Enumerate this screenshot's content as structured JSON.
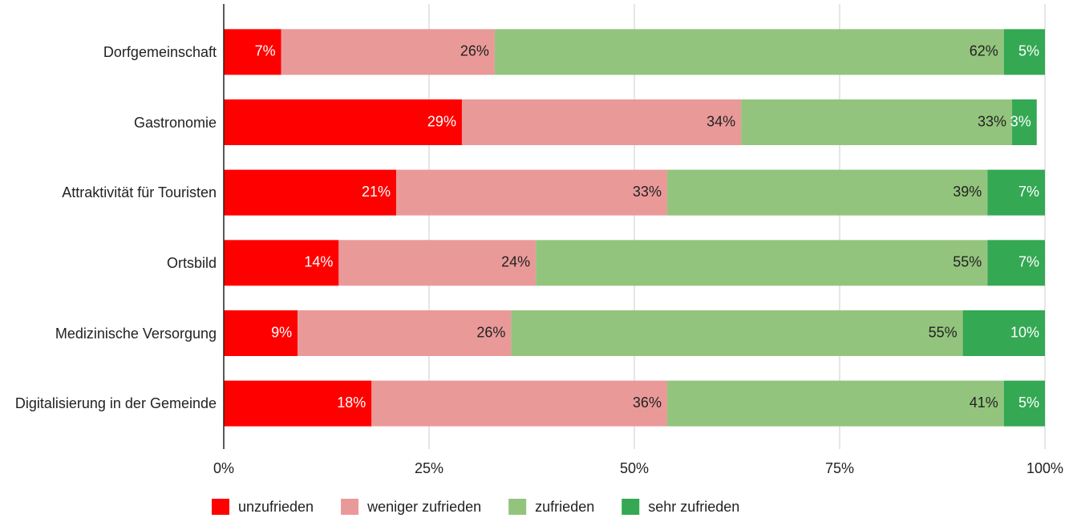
{
  "chart_data": {
    "type": "stacked_bar_horizontal",
    "categories": [
      "Dorfgemeinschaft",
      "Gastronomie",
      "Attraktivität für Touristen",
      "Ortsbild",
      "Medizinische Versorgung",
      "Digitalisierung in der Gemeinde"
    ],
    "series": [
      {
        "name": "unzufrieden",
        "color": "#ff0000",
        "values": [
          7,
          29,
          21,
          14,
          9,
          18
        ],
        "value_labels": [
          "7%",
          "29%",
          "21%",
          "14%",
          "9%",
          "18%"
        ]
      },
      {
        "name": "weniger zufrieden",
        "color": "#ea9999",
        "values": [
          26,
          34,
          33,
          24,
          26,
          36
        ],
        "value_labels": [
          "26%",
          "34%",
          "33%",
          "24%",
          "26%",
          "36%"
        ]
      },
      {
        "name": "zufrieden",
        "color": "#93c47d",
        "values": [
          62,
          33,
          39,
          55,
          55,
          41
        ],
        "value_labels": [
          "62%",
          "33%",
          "39%",
          "55%",
          "55%",
          "41%"
        ]
      },
      {
        "name": "sehr zufrieden",
        "color": "#34a853",
        "values": [
          5,
          3,
          7,
          7,
          10,
          5
        ],
        "value_labels": [
          "5%",
          "3%",
          "7%",
          "7%",
          "10%",
          "5%"
        ]
      }
    ],
    "xlim": [
      0,
      100
    ],
    "xticks": [
      {
        "value": 0,
        "label": "0%"
      },
      {
        "value": 25,
        "label": "25%"
      },
      {
        "value": 50,
        "label": "50%"
      },
      {
        "value": 75,
        "label": "75%"
      },
      {
        "value": 100,
        "label": "100%"
      }
    ],
    "grid": true,
    "legend": "bottom"
  }
}
